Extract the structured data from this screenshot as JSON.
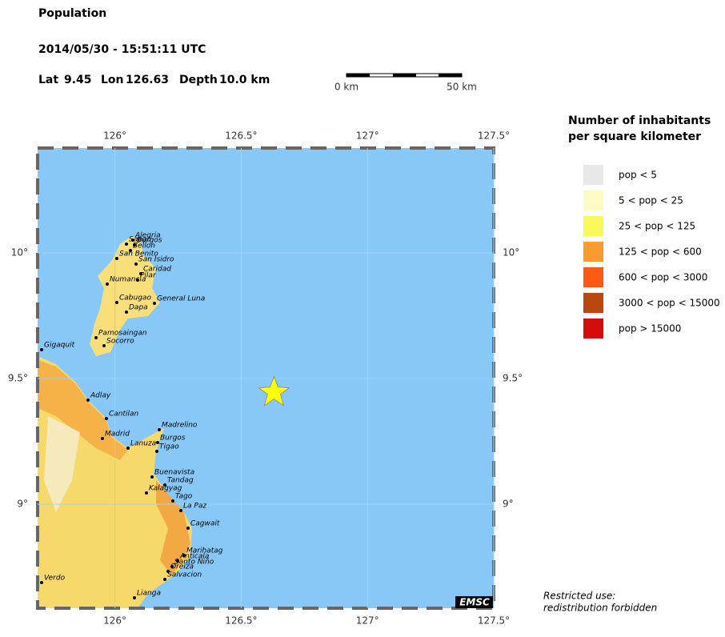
{
  "header": {
    "title": "Population",
    "datetime": "2014/05/30 - 15:51:11 UTC",
    "lat_label": "Lat",
    "lat": 9.45,
    "lon_label": "Lon",
    "lon": 126.63,
    "depth_label": "Depth",
    "depth": "10.0 km"
  },
  "scale_bar": {
    "start": "0 km",
    "end": "50 km"
  },
  "map": {
    "xlim": [
      125.694,
      127.5
    ],
    "ylim": [
      8.586,
      10.417
    ],
    "xticks": [
      {
        "value": 126,
        "label": "126°"
      },
      {
        "value": 126.5,
        "label": "126.5°"
      },
      {
        "value": 127,
        "label": "127°"
      },
      {
        "value": 127.5,
        "label": "127.5°"
      }
    ],
    "yticks": [
      {
        "value": 10,
        "label": "10°"
      },
      {
        "value": 9.5,
        "label": "9.5°"
      },
      {
        "value": 9,
        "label": "9°"
      }
    ],
    "towns": [
      "Alegria",
      "Sapao",
      "Burgos",
      "Bellon",
      "San Benito",
      "San Isidro",
      "Caridad",
      "Numancia",
      "Pilar",
      "Cabugao",
      "General Luna",
      "Dapa",
      "Pamosaingan",
      "Socorro",
      "Gigaquit",
      "Adlay",
      "Cantilan",
      "Madrid",
      "Madrelino",
      "Lanuza",
      "Burgos",
      "Tigao",
      "Buenavista",
      "Tandag",
      "Kalagyag",
      "Tago",
      "La Paz",
      "Cagwait",
      "Marihatag",
      "Anticala",
      "Santo Niño",
      "Oreiza",
      "Salvacion",
      "Lianga",
      "Verdo"
    ],
    "credit": "EMSC"
  },
  "legend": {
    "title": [
      "Number of inhabitants",
      "per square kilometer"
    ],
    "items": [
      {
        "label": "pop < 5",
        "color": "#e8e8e8"
      },
      {
        "label": "5 < pop < 25",
        "color": "#fbfbc5"
      },
      {
        "label": "25 < pop < 125",
        "color": "#f9f95c"
      },
      {
        "label": "125 < pop < 600",
        "color": "#fb9a30"
      },
      {
        "label": "600 < pop < 3000",
        "color": "#fb5a14"
      },
      {
        "label": "3000 < pop < 15000",
        "color": "#b84710"
      },
      {
        "label": "pop > 15000",
        "color": "#d60c0c"
      }
    ]
  },
  "notice": [
    "Restricted use:",
    "redistribution forbidden"
  ]
}
